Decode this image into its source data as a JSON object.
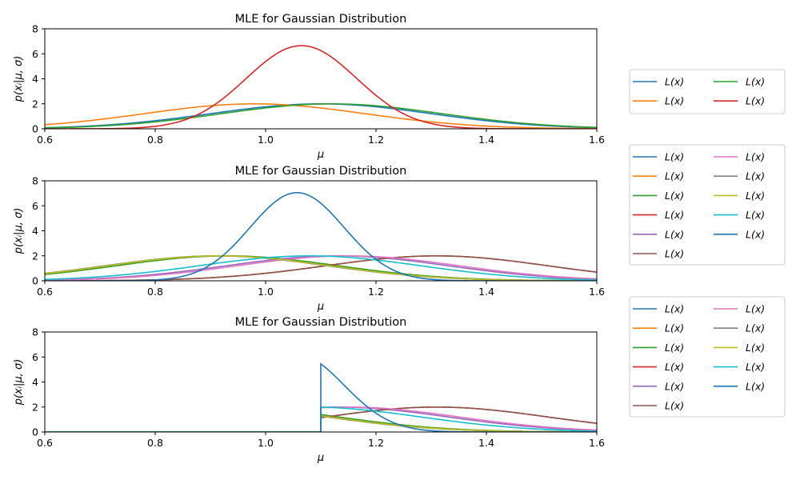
{
  "chart_data": [
    {
      "type": "line",
      "title": "MLE for Gaussian Distribution",
      "xlabel": "μ",
      "ylabel": "p(xᵢ|μ, σ)",
      "xlim": [
        0.6,
        1.6
      ],
      "ylim": [
        0,
        8
      ],
      "xticks": [
        "0.6",
        "0.8",
        "1.0",
        "1.2",
        "1.4",
        "1.6"
      ],
      "yticks": [
        "0",
        "2",
        "4",
        "6",
        "8"
      ],
      "legend": {
        "placement": "right",
        "columns": 2
      },
      "series": [
        {
          "name": "L(x1)",
          "color": "#1f77b4",
          "curve": {
            "kind": "gauss",
            "mu": 1.1,
            "sigma": 0.2
          }
        },
        {
          "name": "L(x2)",
          "color": "#ff7f0e",
          "curve": {
            "kind": "gauss",
            "mu": 0.98,
            "sigma": 0.2
          }
        },
        {
          "name": "L(x3)",
          "color": "#2ca02c",
          "curve": {
            "kind": "gauss",
            "mu": 1.12,
            "sigma": 0.2
          }
        },
        {
          "name": "L(x)",
          "color": "#d62728",
          "curve": {
            "kind": "gauss",
            "mu": 1.065,
            "sigma": 0.1,
            "peak": 6.65
          }
        }
      ]
    },
    {
      "type": "line",
      "title": "MLE for Gaussian Distribution",
      "xlabel": "μ",
      "ylabel": "p(xᵢ|μ, σ)",
      "xlim": [
        0.6,
        1.6
      ],
      "ylim": [
        0,
        8
      ],
      "xticks": [
        "0.6",
        "0.8",
        "1.0",
        "1.2",
        "1.4",
        "1.6"
      ],
      "yticks": [
        "0",
        "2",
        "4",
        "6",
        "8"
      ],
      "legend": {
        "placement": "right",
        "columns": 2
      },
      "series": [
        {
          "name": "L(x1)",
          "color": "#1f77b4",
          "curve": {
            "kind": "gauss",
            "mu": 0.92,
            "sigma": 0.2
          }
        },
        {
          "name": "L(x2)",
          "color": "#ff7f0e",
          "curve": {
            "kind": "gauss",
            "mu": 0.93,
            "sigma": 0.2
          }
        },
        {
          "name": "L(x3)",
          "color": "#2ca02c",
          "curve": {
            "kind": "gauss",
            "mu": 0.93,
            "sigma": 0.2
          }
        },
        {
          "name": "L(x4)",
          "color": "#d62728",
          "curve": {
            "kind": "gauss",
            "mu": 1.31,
            "sigma": 0.2
          }
        },
        {
          "name": "L(x5)",
          "color": "#9467bd",
          "curve": {
            "kind": "gauss",
            "mu": 1.13,
            "sigma": 0.2
          }
        },
        {
          "name": "L(x6)",
          "color": "#8c564b",
          "curve": {
            "kind": "gauss",
            "mu": 1.31,
            "sigma": 0.2
          }
        },
        {
          "name": "L(x7)",
          "color": "#e377c2",
          "curve": {
            "kind": "gauss",
            "mu": 1.15,
            "sigma": 0.2
          }
        },
        {
          "name": "L(x8)",
          "color": "#7f7f7f",
          "curve": {
            "kind": "gauss",
            "mu": 0.91,
            "sigma": 0.2
          }
        },
        {
          "name": "L(x9)",
          "color": "#bcbd22",
          "curve": {
            "kind": "gauss",
            "mu": 0.915,
            "sigma": 0.2
          }
        },
        {
          "name": "L(x10)",
          "color": "#17becf",
          "curve": {
            "kind": "gauss",
            "mu": 1.08,
            "sigma": 0.2
          }
        },
        {
          "name": "L(x)",
          "color": "#1f77b4",
          "curve": {
            "kind": "gauss",
            "mu": 1.057,
            "sigma": 0.085,
            "peak": 7.05
          }
        }
      ]
    },
    {
      "type": "line",
      "title": "MLE for Gaussian Distribution",
      "xlabel": "μ",
      "ylabel": "p(xᵢ|μ, σ)",
      "xlim": [
        0.6,
        1.6
      ],
      "ylim": [
        0,
        8
      ],
      "xticks": [
        "0.6",
        "0.8",
        "1.0",
        "1.2",
        "1.4",
        "1.6"
      ],
      "yticks": [
        "0",
        "2",
        "4",
        "6",
        "8"
      ],
      "legend": {
        "placement": "right",
        "columns": 2
      },
      "series": [
        {
          "name": "L(x1)",
          "color": "#1f77b4",
          "curve": {
            "kind": "gauss",
            "mu": 0.92,
            "sigma": 0.2,
            "cutoff": 1.1
          }
        },
        {
          "name": "L(x2)",
          "color": "#ff7f0e",
          "curve": {
            "kind": "gauss",
            "mu": 0.93,
            "sigma": 0.2,
            "cutoff": 1.1
          }
        },
        {
          "name": "L(x3)",
          "color": "#2ca02c",
          "curve": {
            "kind": "gauss",
            "mu": 0.93,
            "sigma": 0.2,
            "cutoff": 1.1
          }
        },
        {
          "name": "L(x4)",
          "color": "#d62728",
          "curve": {
            "kind": "gauss",
            "mu": 1.31,
            "sigma": 0.2,
            "cutoff": 1.1
          }
        },
        {
          "name": "L(x5)",
          "color": "#9467bd",
          "curve": {
            "kind": "gauss",
            "mu": 1.13,
            "sigma": 0.2,
            "cutoff": 1.1
          }
        },
        {
          "name": "L(x6)",
          "color": "#8c564b",
          "curve": {
            "kind": "gauss",
            "mu": 1.31,
            "sigma": 0.2,
            "cutoff": 1.1
          }
        },
        {
          "name": "L(x7)",
          "color": "#e377c2",
          "curve": {
            "kind": "gauss",
            "mu": 1.15,
            "sigma": 0.2,
            "cutoff": 1.1
          }
        },
        {
          "name": "L(x8)",
          "color": "#7f7f7f",
          "curve": {
            "kind": "gauss",
            "mu": 0.91,
            "sigma": 0.2,
            "cutoff": 1.1
          }
        },
        {
          "name": "L(x9)",
          "color": "#bcbd22",
          "curve": {
            "kind": "gauss",
            "mu": 0.915,
            "sigma": 0.2,
            "cutoff": 1.1
          }
        },
        {
          "name": "L(x10)",
          "color": "#17becf",
          "curve": {
            "kind": "gauss",
            "mu": 1.08,
            "sigma": 0.2,
            "cutoff": 1.1
          }
        },
        {
          "name": "L(x)",
          "color": "#1f77b4",
          "curve": {
            "kind": "truncated",
            "mu": 1.057,
            "sigma": 0.085,
            "cutoff": 1.1,
            "peak": 5.45
          }
        }
      ]
    }
  ]
}
